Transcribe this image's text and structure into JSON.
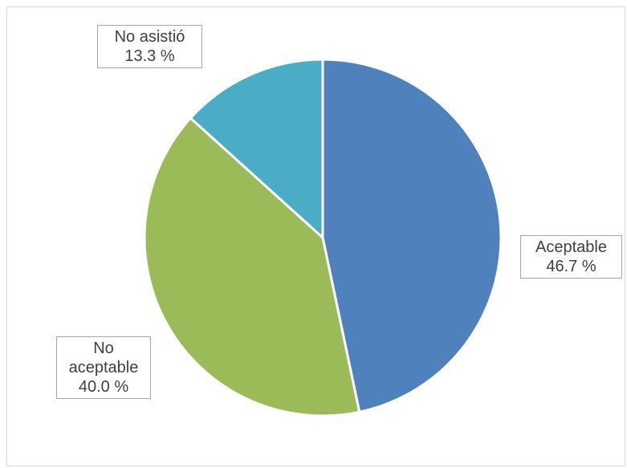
{
  "chart_data": {
    "type": "pie",
    "title": "",
    "categories": [
      "Aceptable",
      "No aceptable",
      "No asistió"
    ],
    "values": [
      46.7,
      40.0,
      13.3
    ],
    "value_labels": [
      "46.7 %",
      "40.0 %",
      "13.3 %"
    ],
    "label_lines": [
      [
        "Aceptable"
      ],
      [
        "No",
        "aceptable"
      ],
      [
        "No asistió"
      ]
    ],
    "colors": [
      "#4f81bd",
      "#9bbb59",
      "#4bacc6"
    ],
    "start_angle_deg": 0,
    "direction": "clockwise",
    "legend": "none",
    "slice_border_color": "#ffffff"
  }
}
